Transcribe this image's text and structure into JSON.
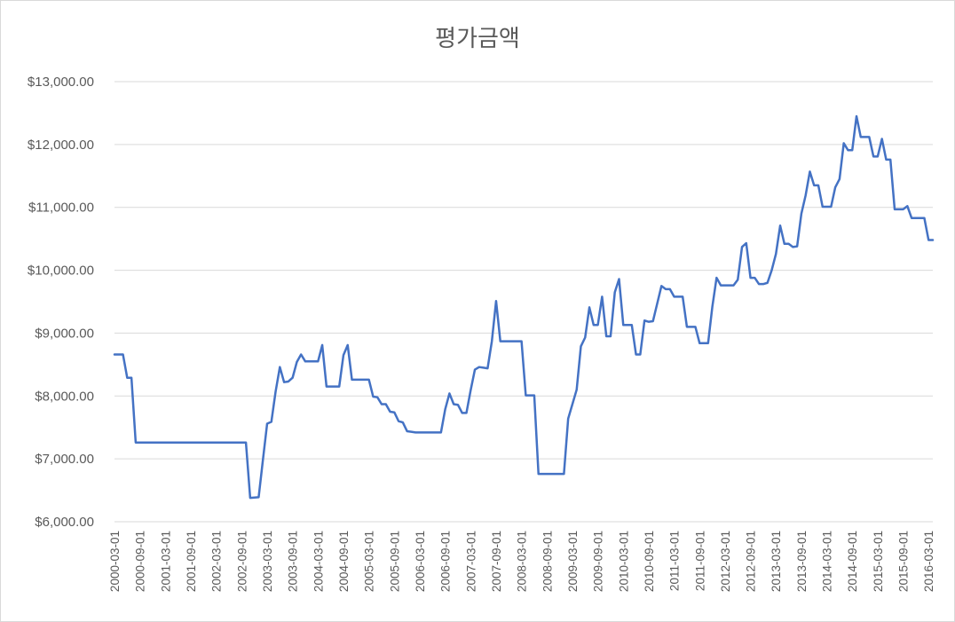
{
  "chart_data": {
    "type": "line",
    "title": "평가금액",
    "xlabel": "",
    "ylabel": "",
    "ylim": [
      6000,
      13000
    ],
    "ytick_values": [
      6000,
      7000,
      8000,
      9000,
      10000,
      11000,
      12000,
      13000
    ],
    "ytick_labels": [
      "$6,000.00",
      "$7,000.00",
      "$8,000.00",
      "$9,000.00",
      "$10,000.00",
      "$11,000.00",
      "$12,000.00",
      "$13,000.00"
    ],
    "xtick_labels": [
      "2000-03-01",
      "2000-09-01",
      "2001-03-01",
      "2001-09-01",
      "2002-03-01",
      "2002-09-01",
      "2003-03-01",
      "2003-09-01",
      "2004-03-01",
      "2004-09-01",
      "2005-03-01",
      "2005-09-01",
      "2006-03-01",
      "2006-09-01",
      "2007-03-01",
      "2007-09-01",
      "2008-03-01",
      "2008-09-01",
      "2009-03-01",
      "2009-09-01",
      "2010-03-01",
      "2010-09-01",
      "2011-03-01",
      "2011-09-01",
      "2012-03-01",
      "2012-09-01",
      "2013-03-01",
      "2013-09-01",
      "2014-03-01",
      "2014-09-01",
      "2015-03-01",
      "2015-09-01",
      "2016-03-01"
    ],
    "grid": true,
    "legend": "none",
    "series_color": "#4472c4",
    "series": [
      {
        "points": [
          [
            "2000-03-01",
            8660
          ],
          [
            "2000-05-01",
            8660
          ],
          [
            "2000-06-01",
            8290
          ],
          [
            "2000-07-01",
            8290
          ],
          [
            "2000-08-01",
            7260
          ],
          [
            "2002-10-01",
            7260
          ],
          [
            "2002-11-01",
            6380
          ],
          [
            "2003-01-01",
            6390
          ],
          [
            "2003-02-01",
            6980
          ],
          [
            "2003-03-01",
            7560
          ],
          [
            "2003-04-01",
            7590
          ],
          [
            "2003-05-01",
            8070
          ],
          [
            "2003-06-01",
            8460
          ],
          [
            "2003-07-01",
            8220
          ],
          [
            "2003-08-01",
            8230
          ],
          [
            "2003-09-01",
            8290
          ],
          [
            "2003-10-01",
            8540
          ],
          [
            "2003-11-01",
            8660
          ],
          [
            "2003-12-01",
            8550
          ],
          [
            "2004-03-01",
            8550
          ],
          [
            "2004-04-01",
            8810
          ],
          [
            "2004-05-01",
            8150
          ],
          [
            "2004-08-01",
            8150
          ],
          [
            "2004-09-01",
            8650
          ],
          [
            "2004-10-01",
            8810
          ],
          [
            "2004-11-01",
            8260
          ],
          [
            "2005-03-01",
            8260
          ],
          [
            "2005-04-01",
            7990
          ],
          [
            "2005-05-01",
            7980
          ],
          [
            "2005-06-01",
            7870
          ],
          [
            "2005-07-01",
            7870
          ],
          [
            "2005-08-01",
            7750
          ],
          [
            "2005-09-01",
            7740
          ],
          [
            "2005-10-01",
            7600
          ],
          [
            "2005-11-01",
            7580
          ],
          [
            "2005-12-01",
            7440
          ],
          [
            "2006-01-01",
            7430
          ],
          [
            "2006-02-01",
            7420
          ],
          [
            "2006-08-01",
            7420
          ],
          [
            "2006-09-01",
            7790
          ],
          [
            "2006-10-01",
            8040
          ],
          [
            "2006-11-01",
            7870
          ],
          [
            "2006-12-01",
            7860
          ],
          [
            "2007-01-01",
            7730
          ],
          [
            "2007-02-01",
            7730
          ],
          [
            "2007-03-01",
            8090
          ],
          [
            "2007-04-01",
            8420
          ],
          [
            "2007-05-01",
            8460
          ],
          [
            "2007-06-01",
            8450
          ],
          [
            "2007-07-01",
            8440
          ],
          [
            "2007-08-01",
            8870
          ],
          [
            "2007-09-01",
            9510
          ],
          [
            "2007-10-01",
            8870
          ],
          [
            "2008-03-01",
            8870
          ],
          [
            "2008-04-01",
            8010
          ],
          [
            "2008-06-01",
            8010
          ],
          [
            "2008-07-01",
            6760
          ],
          [
            "2009-01-01",
            6760
          ],
          [
            "2009-02-01",
            7640
          ],
          [
            "2009-03-01",
            7870
          ],
          [
            "2009-04-01",
            8100
          ],
          [
            "2009-05-01",
            8790
          ],
          [
            "2009-06-01",
            8930
          ],
          [
            "2009-07-01",
            9410
          ],
          [
            "2009-08-01",
            9130
          ],
          [
            "2009-09-01",
            9130
          ],
          [
            "2009-10-01",
            9580
          ],
          [
            "2009-11-01",
            8950
          ],
          [
            "2009-12-01",
            8950
          ],
          [
            "2010-01-01",
            9650
          ],
          [
            "2010-02-01",
            9860
          ],
          [
            "2010-03-01",
            9130
          ],
          [
            "2010-05-01",
            9130
          ],
          [
            "2010-06-01",
            8660
          ],
          [
            "2010-07-01",
            8660
          ],
          [
            "2010-08-01",
            9200
          ],
          [
            "2010-09-01",
            9180
          ],
          [
            "2010-10-01",
            9190
          ],
          [
            "2010-11-01",
            9470
          ],
          [
            "2010-12-01",
            9750
          ],
          [
            "2011-01-01",
            9700
          ],
          [
            "2011-02-01",
            9700
          ],
          [
            "2011-03-01",
            9580
          ],
          [
            "2011-05-01",
            9580
          ],
          [
            "2011-06-01",
            9100
          ],
          [
            "2011-08-01",
            9100
          ],
          [
            "2011-09-01",
            8840
          ],
          [
            "2011-11-01",
            8840
          ],
          [
            "2011-12-01",
            9420
          ],
          [
            "2012-01-01",
            9880
          ],
          [
            "2012-02-01",
            9760
          ],
          [
            "2012-05-01",
            9760
          ],
          [
            "2012-06-01",
            9850
          ],
          [
            "2012-07-01",
            10370
          ],
          [
            "2012-08-01",
            10430
          ],
          [
            "2012-09-01",
            9880
          ],
          [
            "2012-10-01",
            9880
          ],
          [
            "2012-11-01",
            9780
          ],
          [
            "2012-12-01",
            9780
          ],
          [
            "2013-01-01",
            9800
          ],
          [
            "2013-02-01",
            10000
          ],
          [
            "2013-03-01",
            10260
          ],
          [
            "2013-04-01",
            10710
          ],
          [
            "2013-05-01",
            10420
          ],
          [
            "2013-06-01",
            10420
          ],
          [
            "2013-07-01",
            10370
          ],
          [
            "2013-08-01",
            10380
          ],
          [
            "2013-09-01",
            10900
          ],
          [
            "2013-10-01",
            11190
          ],
          [
            "2013-11-01",
            11570
          ],
          [
            "2013-12-01",
            11350
          ],
          [
            "2014-01-01",
            11350
          ],
          [
            "2014-02-01",
            11010
          ],
          [
            "2014-04-01",
            11010
          ],
          [
            "2014-05-01",
            11320
          ],
          [
            "2014-06-01",
            11450
          ],
          [
            "2014-07-01",
            12020
          ],
          [
            "2014-08-01",
            11910
          ],
          [
            "2014-09-01",
            11910
          ],
          [
            "2014-10-01",
            12450
          ],
          [
            "2014-11-01",
            12120
          ],
          [
            "2015-01-01",
            12120
          ],
          [
            "2015-02-01",
            11810
          ],
          [
            "2015-03-01",
            11810
          ],
          [
            "2015-04-01",
            12090
          ],
          [
            "2015-05-01",
            11760
          ],
          [
            "2015-06-01",
            11760
          ],
          [
            "2015-07-01",
            10970
          ],
          [
            "2015-09-01",
            10970
          ],
          [
            "2015-10-01",
            11020
          ],
          [
            "2015-11-01",
            10830
          ],
          [
            "2016-02-01",
            10830
          ],
          [
            "2016-03-01",
            10480
          ],
          [
            "2016-04-01",
            10480
          ]
        ]
      }
    ]
  }
}
